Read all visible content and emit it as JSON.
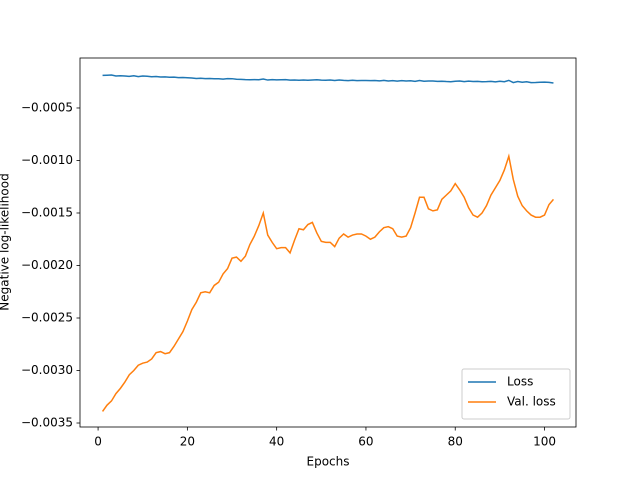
{
  "chart_data": {
    "type": "line",
    "xlabel": "Epochs",
    "ylabel": "Negative log-likelihood",
    "x": [
      1,
      2,
      3,
      4,
      5,
      6,
      7,
      8,
      9,
      10,
      11,
      12,
      13,
      14,
      15,
      16,
      17,
      18,
      19,
      20,
      21,
      22,
      23,
      24,
      25,
      26,
      27,
      28,
      29,
      30,
      31,
      32,
      33,
      34,
      35,
      36,
      37,
      38,
      39,
      40,
      41,
      42,
      43,
      44,
      45,
      46,
      47,
      48,
      49,
      50,
      51,
      52,
      53,
      54,
      55,
      56,
      57,
      58,
      59,
      60,
      61,
      62,
      63,
      64,
      65,
      66,
      67,
      68,
      69,
      70,
      71,
      72,
      73,
      74,
      75,
      76,
      77,
      78,
      79,
      80,
      81,
      82,
      83,
      84,
      85,
      86,
      87,
      88,
      89,
      90,
      91,
      92,
      93,
      94,
      95,
      96,
      97,
      98,
      99,
      100,
      101,
      102
    ],
    "series": [
      {
        "name": "Loss",
        "color": "#1f77b4",
        "values": [
          -0.00019,
          -0.000188,
          -0.000186,
          -0.000195,
          -0.000193,
          -0.000196,
          -0.000199,
          -0.000193,
          -0.000201,
          -0.000196,
          -0.000198,
          -0.000203,
          -0.0002,
          -0.000205,
          -0.000204,
          -0.000207,
          -0.000206,
          -0.000211,
          -0.00021,
          -0.000212,
          -0.000215,
          -0.000219,
          -0.000217,
          -0.00022,
          -0.000219,
          -0.000221,
          -0.000222,
          -0.000225,
          -0.00022,
          -0.000221,
          -0.000226,
          -0.000228,
          -0.00023,
          -0.000231,
          -0.00023,
          -0.000231,
          -0.000224,
          -0.000234,
          -0.00023,
          -0.000232,
          -0.000231,
          -0.00023,
          -0.000235,
          -0.000233,
          -0.000236,
          -0.000234,
          -0.000236,
          -0.000233,
          -0.000231,
          -0.000235,
          -0.000236,
          -0.000234,
          -0.000238,
          -0.000233,
          -0.000237,
          -0.00024,
          -0.000236,
          -0.000239,
          -0.000238,
          -0.000238,
          -0.00024,
          -0.000238,
          -0.000242,
          -0.000237,
          -0.000243,
          -0.00024,
          -0.000244,
          -0.000239,
          -0.000243,
          -0.000241,
          -0.000246,
          -0.000238,
          -0.000245,
          -0.000243,
          -0.000243,
          -0.000247,
          -0.000245,
          -0.000248,
          -0.00025,
          -0.000246,
          -0.000243,
          -0.000249,
          -0.000244,
          -0.000248,
          -0.000247,
          -0.00025,
          -0.000249,
          -0.000247,
          -0.000251,
          -0.000246,
          -0.00025,
          -0.000237,
          -0.000258,
          -0.000248,
          -0.000255,
          -0.00025,
          -0.000258,
          -0.000257,
          -0.000255,
          -0.000254,
          -0.000256,
          -0.000262
        ]
      },
      {
        "name": "Val. loss",
        "color": "#ff7f0e",
        "values": [
          -0.00339,
          -0.00333,
          -0.00329,
          -0.00322,
          -0.00317,
          -0.00311,
          -0.00304,
          -0.003,
          -0.00295,
          -0.00293,
          -0.00292,
          -0.00289,
          -0.00283,
          -0.00282,
          -0.00284,
          -0.00283,
          -0.00277,
          -0.0027,
          -0.00263,
          -0.00253,
          -0.00242,
          -0.00235,
          -0.00226,
          -0.00225,
          -0.00226,
          -0.00219,
          -0.00216,
          -0.00208,
          -0.00203,
          -0.00193,
          -0.00192,
          -0.00196,
          -0.00191,
          -0.0018,
          -0.00172,
          -0.00162,
          -0.0015,
          -0.00171,
          -0.00178,
          -0.00184,
          -0.00183,
          -0.00183,
          -0.00188,
          -0.00176,
          -0.00165,
          -0.00166,
          -0.00161,
          -0.00159,
          -0.00169,
          -0.00177,
          -0.00178,
          -0.00178,
          -0.00182,
          -0.00174,
          -0.0017,
          -0.00173,
          -0.00171,
          -0.0017,
          -0.0017,
          -0.00172,
          -0.00175,
          -0.00173,
          -0.00168,
          -0.00164,
          -0.00163,
          -0.00165,
          -0.00172,
          -0.00173,
          -0.00172,
          -0.00164,
          -0.0015,
          -0.00135,
          -0.00135,
          -0.00146,
          -0.00148,
          -0.00147,
          -0.00137,
          -0.00133,
          -0.00129,
          -0.00122,
          -0.00128,
          -0.00135,
          -0.00145,
          -0.00152,
          -0.00154,
          -0.0015,
          -0.00143,
          -0.00133,
          -0.00126,
          -0.00119,
          -0.00109,
          -0.00096,
          -0.00118,
          -0.00134,
          -0.00143,
          -0.00148,
          -0.00152,
          -0.00154,
          -0.00154,
          -0.00152,
          -0.00142,
          -0.00137
        ]
      }
    ],
    "xlim": [
      -4.05,
      107.05
    ],
    "xticks": [
      0,
      20,
      40,
      60,
      80,
      100
    ],
    "ylim": [
      -0.003538,
      -2.4e-05
    ],
    "yticks": [
      {
        "value": -0.0005,
        "label": "−0.0005"
      },
      {
        "value": -0.001,
        "label": "−0.0010"
      },
      {
        "value": -0.0015,
        "label": "−0.0015"
      },
      {
        "value": -0.002,
        "label": "−0.0020"
      },
      {
        "value": -0.0025,
        "label": "−0.0025"
      },
      {
        "value": -0.003,
        "label": "−0.0030"
      },
      {
        "value": -0.0035,
        "label": "−0.0035"
      }
    ],
    "legend": "lower right"
  }
}
